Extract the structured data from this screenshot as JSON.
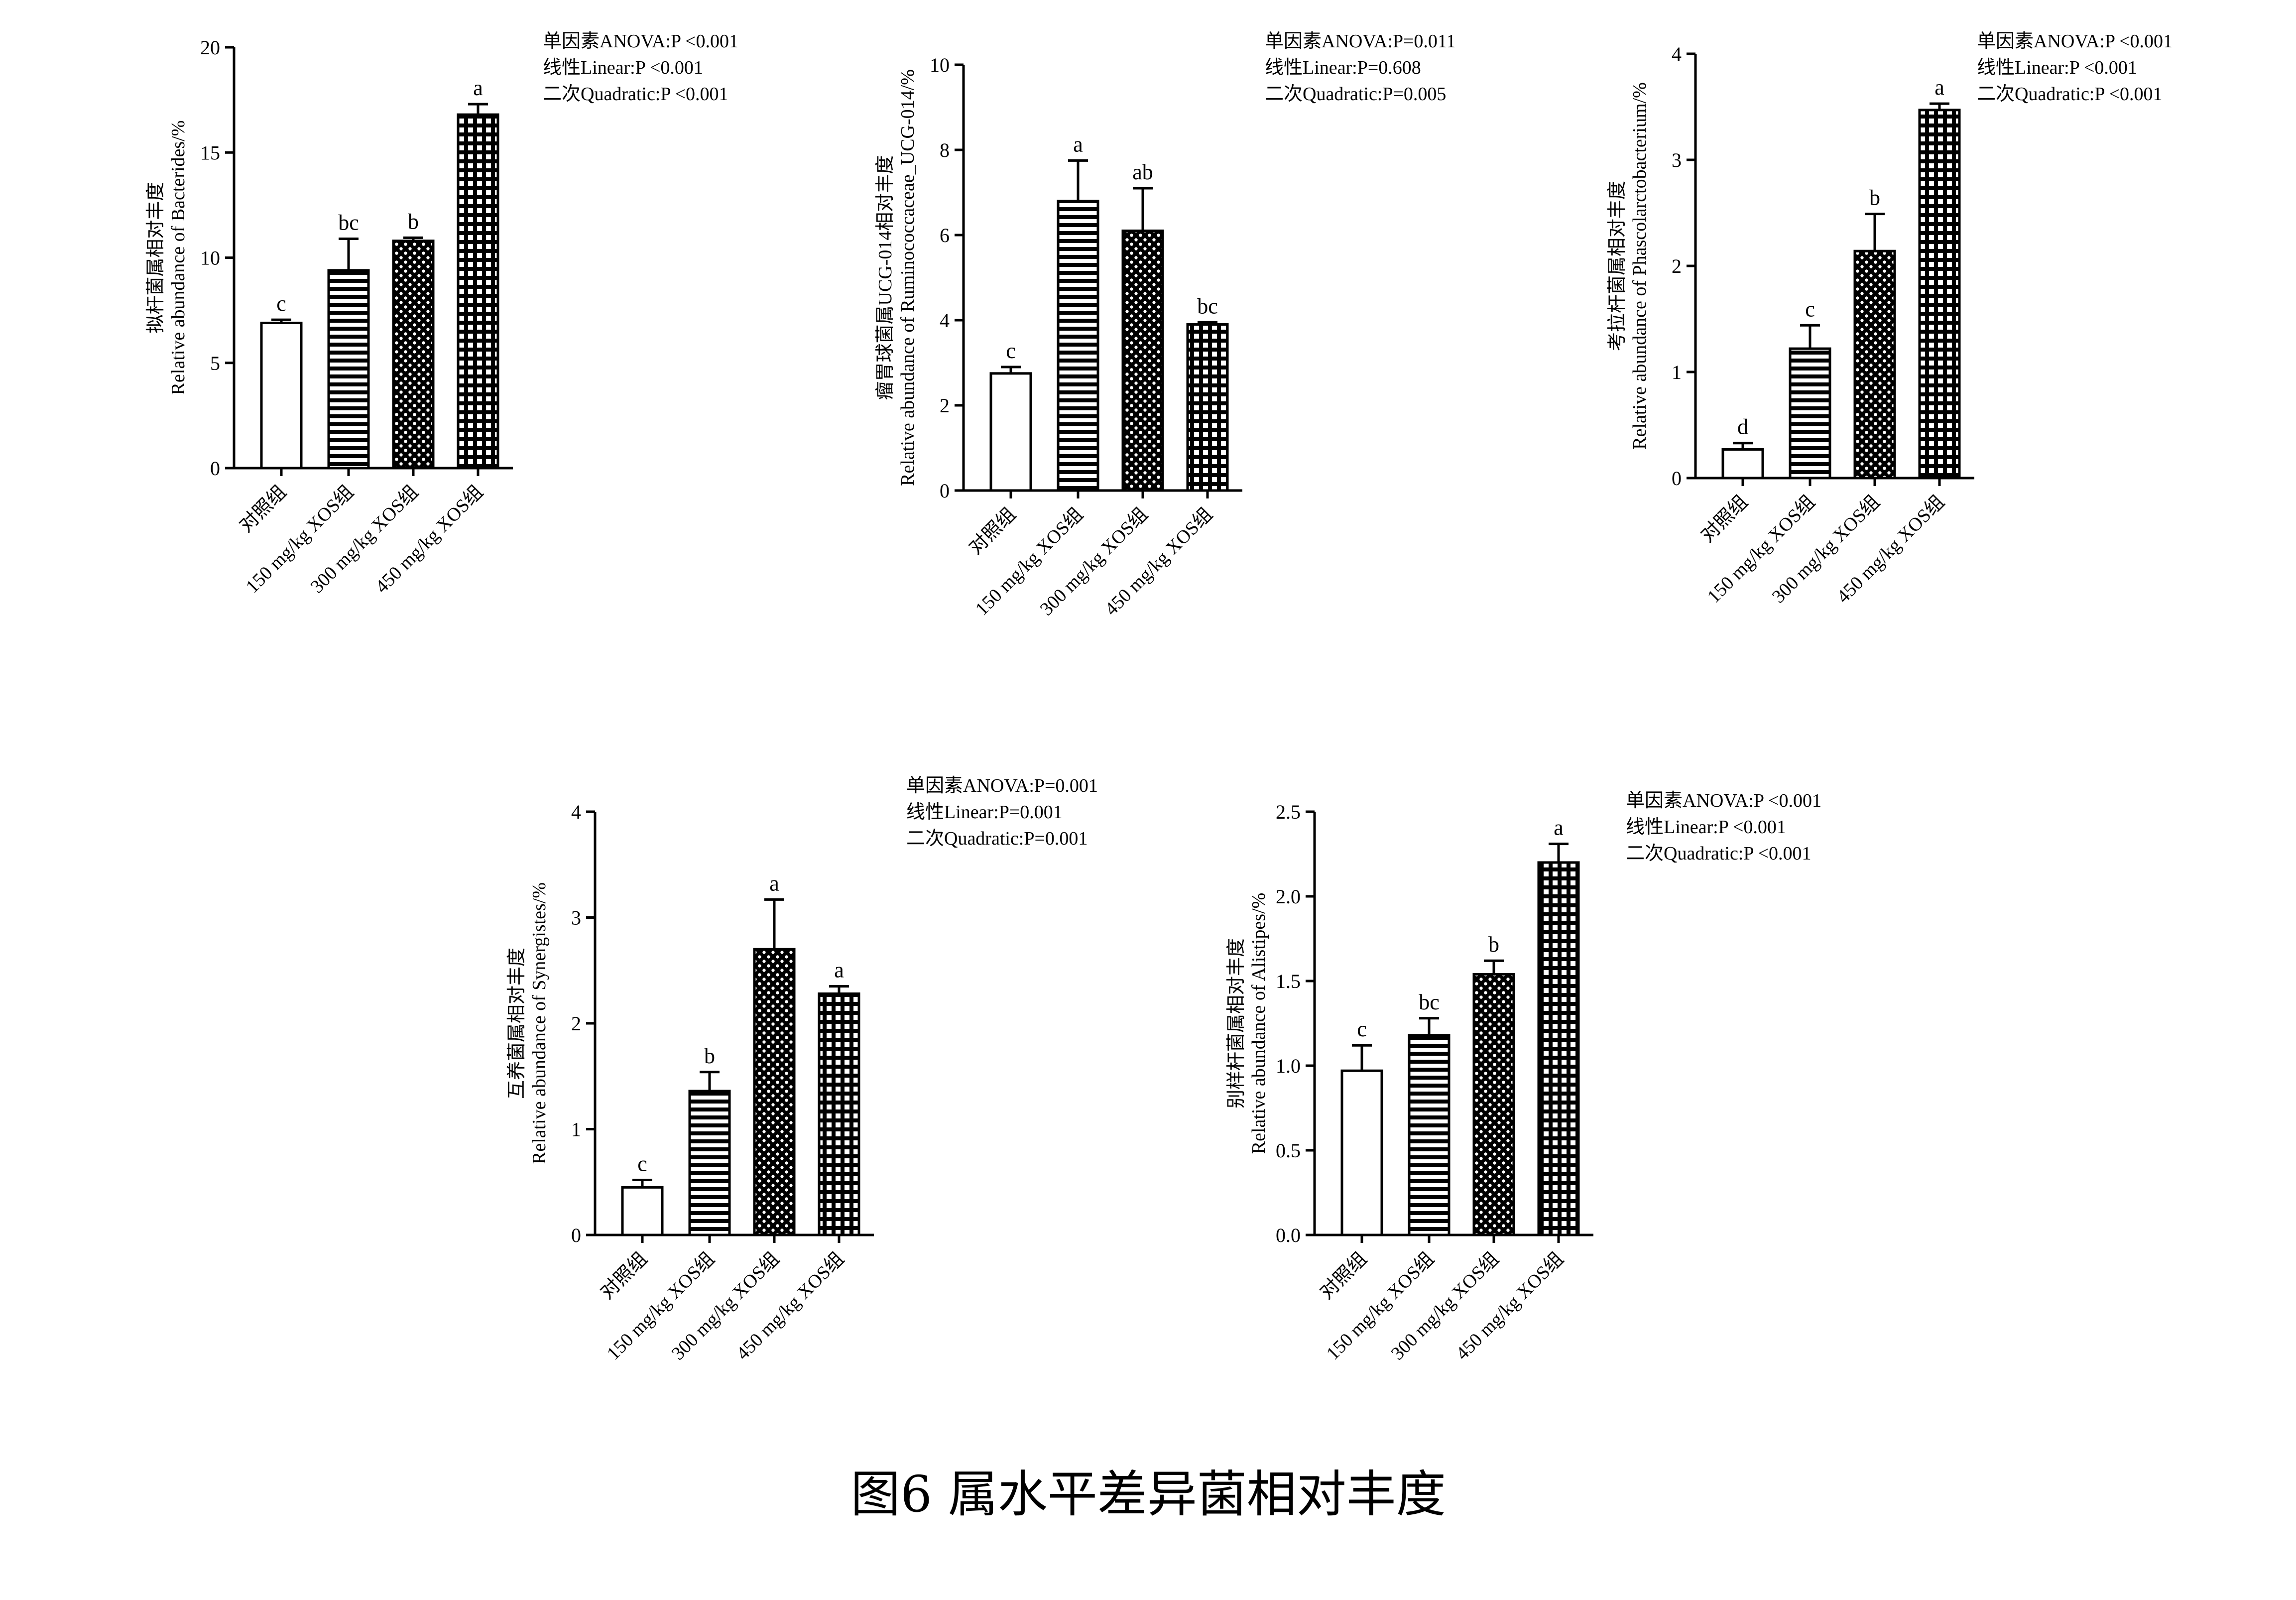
{
  "caption": "图6 属水平差异菌相对丰度",
  "categories": [
    "对照组",
    "150 mg/kg XOS组",
    "300 mg/kg XOS组",
    "450 mg/kg XOS组"
  ],
  "chart_data": [
    {
      "type": "bar",
      "ylabel_cn": "拟杆菌属相对丰度",
      "ylabel_en": "Relative abundance of Bacterides/%",
      "ylim": [
        0,
        20
      ],
      "yticks": [
        "0",
        "5",
        "10",
        "15",
        "20"
      ],
      "yticks_values": [
        0,
        5,
        10,
        15,
        20
      ],
      "values": [
        6.9,
        9.4,
        10.8,
        16.8
      ],
      "errors": [
        0.15,
        1.5,
        0.15,
        0.5
      ],
      "significance": [
        "c",
        "bc",
        "b",
        "a"
      ],
      "stats": [
        "单因素ANOVA:P <0.001",
        "线性Linear:P <0.001",
        "二次Quadratic:P <0.001"
      ]
    },
    {
      "type": "bar",
      "ylabel_cn": "瘤胃球菌属UCG-014相对丰度",
      "ylabel_en": "Relative abundance of Ruminococcaceae_UCG-014/%",
      "ylim": [
        0,
        10
      ],
      "yticks": [
        "0",
        "2",
        "4",
        "6",
        "8",
        "10"
      ],
      "yticks_values": [
        0,
        2,
        4,
        6,
        8,
        10
      ],
      "values": [
        2.75,
        6.8,
        6.1,
        3.9
      ],
      "errors": [
        0.15,
        0.95,
        1.0,
        0.05
      ],
      "significance": [
        "c",
        "a",
        "ab",
        "bc"
      ],
      "stats": [
        "单因素ANOVA:P=0.011",
        "线性Linear:P=0.608",
        "二次Quadratic:P=0.005"
      ]
    },
    {
      "type": "bar",
      "ylabel_cn": "考拉杆菌属相对丰度",
      "ylabel_en": "Relative abundance of Phascolarctobacterium/%",
      "ylim": [
        0,
        4
      ],
      "yticks": [
        "0",
        "1",
        "2",
        "3",
        "4"
      ],
      "yticks_values": [
        0,
        1,
        2,
        3,
        4
      ],
      "values": [
        0.27,
        1.22,
        2.14,
        3.47
      ],
      "errors": [
        0.06,
        0.22,
        0.35,
        0.06
      ],
      "significance": [
        "d",
        "c",
        "b",
        "a"
      ],
      "stats": [
        "单因素ANOVA:P <0.001",
        "线性Linear:P <0.001",
        "二次Quadratic:P <0.001"
      ]
    },
    {
      "type": "bar",
      "ylabel_cn": "互养菌属相对丰度",
      "ylabel_en": "Relative abundance of Synergistes/%",
      "ylim": [
        0,
        4
      ],
      "yticks": [
        "0",
        "1",
        "2",
        "3",
        "4"
      ],
      "yticks_values": [
        0,
        1,
        2,
        3,
        4
      ],
      "values": [
        0.45,
        1.36,
        2.7,
        2.28
      ],
      "errors": [
        0.07,
        0.18,
        0.47,
        0.07
      ],
      "significance": [
        "c",
        "b",
        "a",
        "a"
      ],
      "stats": [
        "单因素ANOVA:P=0.001",
        "线性Linear:P=0.001",
        "二次Quadratic:P=0.001"
      ]
    },
    {
      "type": "bar",
      "ylabel_cn": "别样杆菌属相对丰度",
      "ylabel_en": "Relative abundance of Alistipes/%",
      "ylim": [
        0,
        2.5
      ],
      "yticks": [
        "0.0",
        "0.5",
        "1.0",
        "1.5",
        "2.0",
        "2.5"
      ],
      "yticks_values": [
        0,
        0.5,
        1.0,
        1.5,
        2.0,
        2.5
      ],
      "values": [
        0.97,
        1.18,
        1.54,
        2.2
      ],
      "errors": [
        0.15,
        0.1,
        0.08,
        0.11
      ],
      "significance": [
        "c",
        "bc",
        "b",
        "a"
      ],
      "stats": [
        "单因素ANOVA:P <0.001",
        "线性Linear:P <0.001",
        "二次Quadratic:P <0.001"
      ]
    }
  ]
}
